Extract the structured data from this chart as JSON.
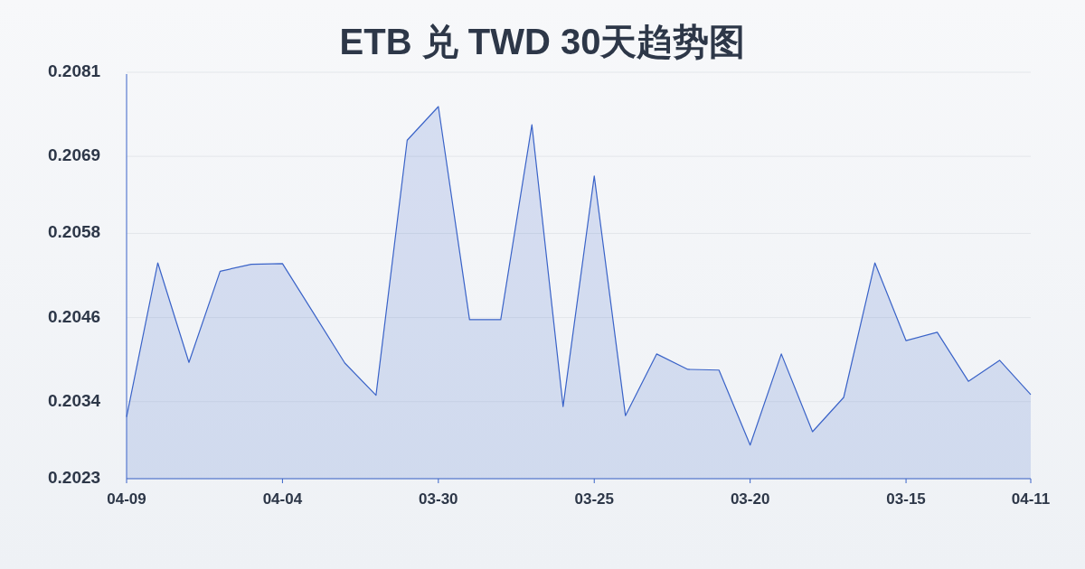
{
  "chart_data": {
    "type": "area",
    "title": "ETB 兑 TWD 30天趋势图",
    "categories": [
      "04-09",
      null,
      null,
      null,
      null,
      "04-04",
      null,
      null,
      null,
      null,
      "03-30",
      null,
      null,
      null,
      null,
      "03-25",
      null,
      null,
      null,
      null,
      "03-20",
      null,
      null,
      null,
      null,
      "03-15",
      null,
      null,
      null,
      "04-11"
    ],
    "values": [
      0.20318,
      0.20538,
      0.20396,
      0.20526,
      0.20536,
      0.20537,
      0.20466,
      0.20395,
      0.20349,
      0.20713,
      0.20761,
      0.20457,
      0.20457,
      0.20735,
      0.20333,
      0.20662,
      0.2032,
      0.20408,
      0.20386,
      0.20385,
      0.20278,
      0.20408,
      0.20297,
      0.20346,
      0.20538,
      0.20427,
      0.20439,
      0.20369,
      0.20399,
      0.2035
    ],
    "color": "#3a63c8",
    "ylim": [
      0.2023,
      0.2081
    ],
    "yticks": [
      0.2023,
      0.2034,
      0.2046,
      0.2058,
      0.2069,
      0.2081
    ],
    "grid": "y"
  }
}
